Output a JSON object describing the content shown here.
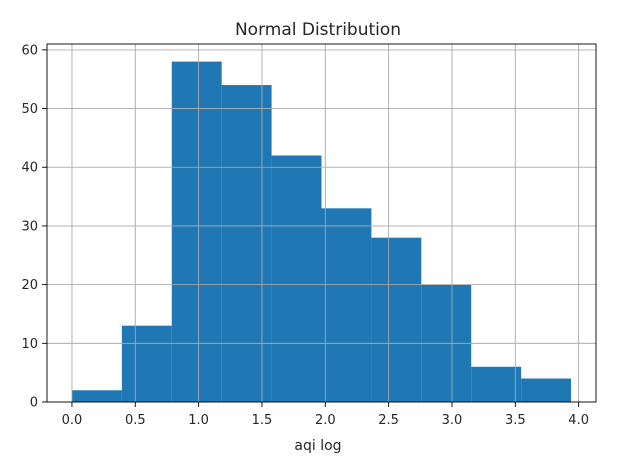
{
  "chart_data": {
    "type": "bar",
    "subtype": "histogram",
    "title": "Normal Distribution",
    "xlabel": "aqi log",
    "ylabel": "",
    "bins": [
      {
        "start": 0.0,
        "end": 0.394,
        "count": 2
      },
      {
        "start": 0.394,
        "end": 0.788,
        "count": 13
      },
      {
        "start": 0.788,
        "end": 1.182,
        "count": 58
      },
      {
        "start": 1.182,
        "end": 1.576,
        "count": 54
      },
      {
        "start": 1.576,
        "end": 1.97,
        "count": 42
      },
      {
        "start": 1.97,
        "end": 2.364,
        "count": 33
      },
      {
        "start": 2.364,
        "end": 2.758,
        "count": 28
      },
      {
        "start": 2.758,
        "end": 3.152,
        "count": 20
      },
      {
        "start": 3.152,
        "end": 3.546,
        "count": 6
      },
      {
        "start": 3.546,
        "end": 3.94,
        "count": 4
      }
    ],
    "xlim": [
      -0.197,
      4.137
    ],
    "ylim": [
      0,
      61
    ],
    "xticks": [
      "0.0",
      "0.5",
      "1.0",
      "1.5",
      "2.0",
      "2.5",
      "3.0",
      "3.5",
      "4.0"
    ],
    "yticks": [
      "0",
      "10",
      "20",
      "30",
      "40",
      "50",
      "60"
    ],
    "grid": true,
    "bar_color": "#1f77b4",
    "grid_color": "#b0b0b0"
  }
}
